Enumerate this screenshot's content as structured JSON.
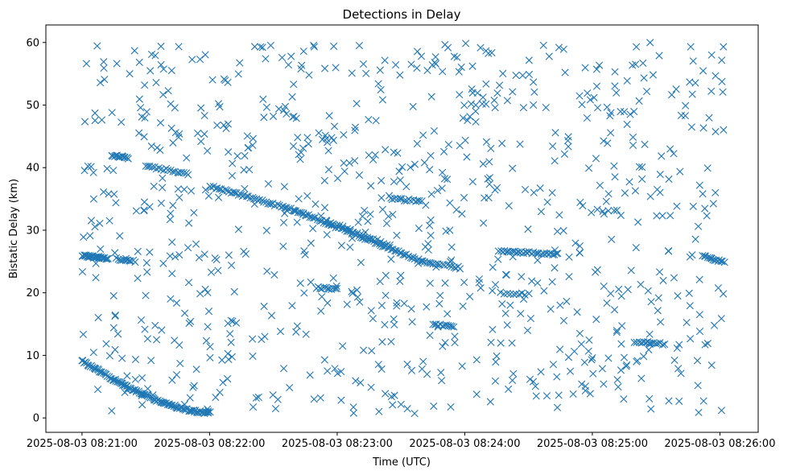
{
  "chart_data": {
    "type": "scatter",
    "title": "Detections in Delay",
    "xlabel": "Time (UTC)",
    "ylabel": "Bistatic Delay (km)",
    "x_unit": "seconds after 2025-08-03 08:21:00",
    "xlim_seconds": [
      -17,
      318
    ],
    "ylim": [
      -2.3,
      62.8
    ],
    "x_ticks": [
      {
        "seconds": 0,
        "label": "2025-08-03 08:21:00"
      },
      {
        "seconds": 60,
        "label": "2025-08-03 08:22:00"
      },
      {
        "seconds": 120,
        "label": "2025-08-03 08:23:00"
      },
      {
        "seconds": 180,
        "label": "2025-08-03 08:24:00"
      },
      {
        "seconds": 240,
        "label": "2025-08-03 08:25:00"
      },
      {
        "seconds": 300,
        "label": "2025-08-03 08:26:00"
      }
    ],
    "y_ticks": [
      0,
      10,
      20,
      30,
      40,
      50,
      60
    ],
    "marker": "x",
    "color": "#1f77b4",
    "grid": false,
    "series": [
      {
        "name": "",
        "tracks": [
          {
            "x": [
              0,
              60
            ],
            "y": [
              9.2,
              0.8
            ],
            "curve": "decay",
            "count": 110
          },
          {
            "x": [
              60,
              100
            ],
            "y": [
              37,
              33.2
            ],
            "count": 45
          },
          {
            "x": [
              100,
              160
            ],
            "y": [
              33.2,
              25
            ],
            "count": 75
          },
          {
            "x": [
              160,
              178
            ],
            "y": [
              25,
              24
            ],
            "count": 18
          },
          {
            "x": [
              196,
              224
            ],
            "y": [
              26.6,
              26.2
            ],
            "count": 32
          },
          {
            "x": [
              30,
              50
            ],
            "y": [
              40.3,
              39
            ],
            "count": 20
          },
          {
            "x": [
              115,
              145
            ],
            "y": [
              31.5,
              27.5
            ],
            "count": 20
          },
          {
            "x": [
              145,
              160
            ],
            "y": [
              35.0,
              34.6
            ],
            "count": 15
          },
          {
            "x": [
              0,
              12
            ],
            "y": [
              25.9,
              25.5
            ],
            "count": 30
          },
          {
            "x": [
              16,
              24
            ],
            "y": [
              25.4,
              25.2
            ],
            "count": 10
          },
          {
            "x": [
              14,
              22
            ],
            "y": [
              42.0,
              41.5
            ],
            "count": 15
          },
          {
            "x": [
              292,
              302
            ],
            "y": [
              25.8,
              25.0
            ],
            "count": 15
          },
          {
            "x": [
              110,
              120
            ],
            "y": [
              20.8,
              20.6
            ],
            "count": 12
          },
          {
            "x": [
              260,
              274
            ],
            "y": [
              12.2,
              11.8
            ],
            "count": 15
          },
          {
            "x": [
              165,
              175
            ],
            "y": [
              15.0,
              14.6
            ],
            "count": 12
          },
          {
            "x": [
              197,
              210
            ],
            "y": [
              20.0,
              19.8
            ],
            "count": 10
          }
        ],
        "random_points": 850,
        "random_x_range": [
          0,
          302
        ],
        "random_y_range": [
          0.5,
          60
        ]
      }
    ]
  }
}
